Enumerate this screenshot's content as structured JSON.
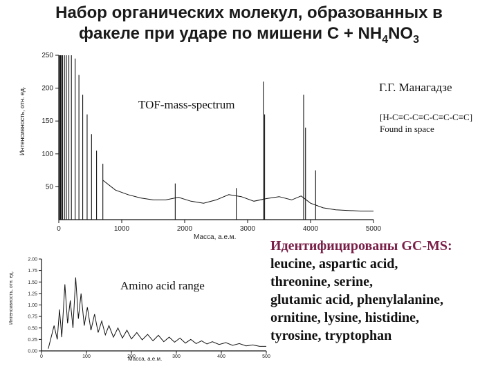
{
  "title": {
    "line1": "Набор органических молекул, образованных в",
    "line2_prefix": "факеле при ударе по мишени  С  + NH",
    "sub1": "4",
    "mid": "NO",
    "sub2": "3"
  },
  "labels": {
    "author": "Г.Г. Манагадзе",
    "formula": "[H-C≡C-C≡C-C≡C-C≡C]",
    "found": "Found in space",
    "tof": "TOF-mass-spectrum",
    "amino": "Amino acid range"
  },
  "identified": {
    "heading": "Идентифицированы GC-MS:",
    "lines": [
      "leucine, aspartic acid,",
      "threonine, serine,",
      "glutamic acid, phenylalanine,",
      "ornitine, lysine, histidine,",
      "tyrosine, tryptophan"
    ]
  },
  "colors": {
    "trace": "#111111",
    "heading": "#7a2048"
  },
  "chart_data": [
    {
      "type": "line",
      "title": "",
      "xlabel": "Масса, а.е.м.",
      "ylabel": "Интенсивность, отн. ед.",
      "xlim": [
        0,
        5000
      ],
      "ylim": [
        0,
        250
      ],
      "xticks": [
        "0",
        "1000",
        "2000",
        "3000",
        "4000",
        "5000"
      ],
      "yticks": [
        "50",
        "100",
        "150",
        "200",
        "250"
      ],
      "peaks": [
        {
          "x": 1,
          "y": 250
        },
        {
          "x": 14,
          "y": 250
        },
        {
          "x": 28,
          "y": 250
        },
        {
          "x": 42,
          "y": 250
        },
        {
          "x": 60,
          "y": 250
        },
        {
          "x": 90,
          "y": 250
        },
        {
          "x": 120,
          "y": 250
        },
        {
          "x": 160,
          "y": 250
        },
        {
          "x": 200,
          "y": 250
        },
        {
          "x": 260,
          "y": 245
        },
        {
          "x": 320,
          "y": 220
        },
        {
          "x": 380,
          "y": 190
        },
        {
          "x": 450,
          "y": 160
        },
        {
          "x": 520,
          "y": 130
        },
        {
          "x": 600,
          "y": 105
        },
        {
          "x": 700,
          "y": 85
        },
        {
          "x": 3250,
          "y": 210
        },
        {
          "x": 3270,
          "y": 160
        },
        {
          "x": 3890,
          "y": 190
        },
        {
          "x": 3920,
          "y": 140
        },
        {
          "x": 4080,
          "y": 75
        },
        {
          "x": 1850,
          "y": 55
        },
        {
          "x": 2820,
          "y": 48
        }
      ],
      "baseline": [
        {
          "x": 700,
          "y": 60
        },
        {
          "x": 900,
          "y": 45
        },
        {
          "x": 1100,
          "y": 38
        },
        {
          "x": 1300,
          "y": 33
        },
        {
          "x": 1500,
          "y": 30
        },
        {
          "x": 1700,
          "y": 30
        },
        {
          "x": 1900,
          "y": 34
        },
        {
          "x": 2100,
          "y": 28
        },
        {
          "x": 2300,
          "y": 25
        },
        {
          "x": 2500,
          "y": 30
        },
        {
          "x": 2700,
          "y": 38
        },
        {
          "x": 2900,
          "y": 35
        },
        {
          "x": 3100,
          "y": 28
        },
        {
          "x": 3300,
          "y": 32
        },
        {
          "x": 3500,
          "y": 35
        },
        {
          "x": 3700,
          "y": 30
        },
        {
          "x": 3850,
          "y": 36
        },
        {
          "x": 4000,
          "y": 25
        },
        {
          "x": 4200,
          "y": 18
        },
        {
          "x": 4400,
          "y": 15
        },
        {
          "x": 4600,
          "y": 14
        },
        {
          "x": 4800,
          "y": 13
        },
        {
          "x": 5000,
          "y": 13
        }
      ]
    },
    {
      "type": "line",
      "title": "",
      "xlabel": "Масса, а.е.м.",
      "ylabel": "Интенсивность, отн. ед.",
      "xlim": [
        0,
        500
      ],
      "ylim": [
        0,
        2.0
      ],
      "xticks": [
        "0",
        "100",
        "200",
        "300",
        "400",
        "500"
      ],
      "yticks": [
        "0.00",
        "0.25",
        "0.50",
        "0.75",
        "1.00",
        "1.25",
        "1.50",
        "1.75",
        "2.00"
      ],
      "values": [
        {
          "x": 15,
          "y": 0.05
        },
        {
          "x": 28,
          "y": 0.55
        },
        {
          "x": 35,
          "y": 0.25
        },
        {
          "x": 40,
          "y": 0.9
        },
        {
          "x": 45,
          "y": 0.3
        },
        {
          "x": 52,
          "y": 1.45
        },
        {
          "x": 58,
          "y": 0.6
        },
        {
          "x": 64,
          "y": 1.1
        },
        {
          "x": 70,
          "y": 0.5
        },
        {
          "x": 76,
          "y": 1.6
        },
        {
          "x": 82,
          "y": 0.7
        },
        {
          "x": 88,
          "y": 1.25
        },
        {
          "x": 95,
          "y": 0.55
        },
        {
          "x": 102,
          "y": 0.95
        },
        {
          "x": 110,
          "y": 0.45
        },
        {
          "x": 118,
          "y": 0.8
        },
        {
          "x": 126,
          "y": 0.4
        },
        {
          "x": 134,
          "y": 0.65
        },
        {
          "x": 142,
          "y": 0.35
        },
        {
          "x": 150,
          "y": 0.55
        },
        {
          "x": 160,
          "y": 0.3
        },
        {
          "x": 170,
          "y": 0.5
        },
        {
          "x": 180,
          "y": 0.28
        },
        {
          "x": 190,
          "y": 0.45
        },
        {
          "x": 200,
          "y": 0.26
        },
        {
          "x": 212,
          "y": 0.4
        },
        {
          "x": 224,
          "y": 0.24
        },
        {
          "x": 236,
          "y": 0.36
        },
        {
          "x": 248,
          "y": 0.22
        },
        {
          "x": 260,
          "y": 0.34
        },
        {
          "x": 272,
          "y": 0.2
        },
        {
          "x": 284,
          "y": 0.3
        },
        {
          "x": 296,
          "y": 0.19
        },
        {
          "x": 308,
          "y": 0.28
        },
        {
          "x": 320,
          "y": 0.17
        },
        {
          "x": 332,
          "y": 0.25
        },
        {
          "x": 344,
          "y": 0.16
        },
        {
          "x": 356,
          "y": 0.22
        },
        {
          "x": 368,
          "y": 0.15
        },
        {
          "x": 380,
          "y": 0.2
        },
        {
          "x": 395,
          "y": 0.14
        },
        {
          "x": 410,
          "y": 0.18
        },
        {
          "x": 425,
          "y": 0.12
        },
        {
          "x": 440,
          "y": 0.16
        },
        {
          "x": 455,
          "y": 0.11
        },
        {
          "x": 470,
          "y": 0.13
        },
        {
          "x": 485,
          "y": 0.1
        },
        {
          "x": 500,
          "y": 0.1
        }
      ]
    }
  ]
}
